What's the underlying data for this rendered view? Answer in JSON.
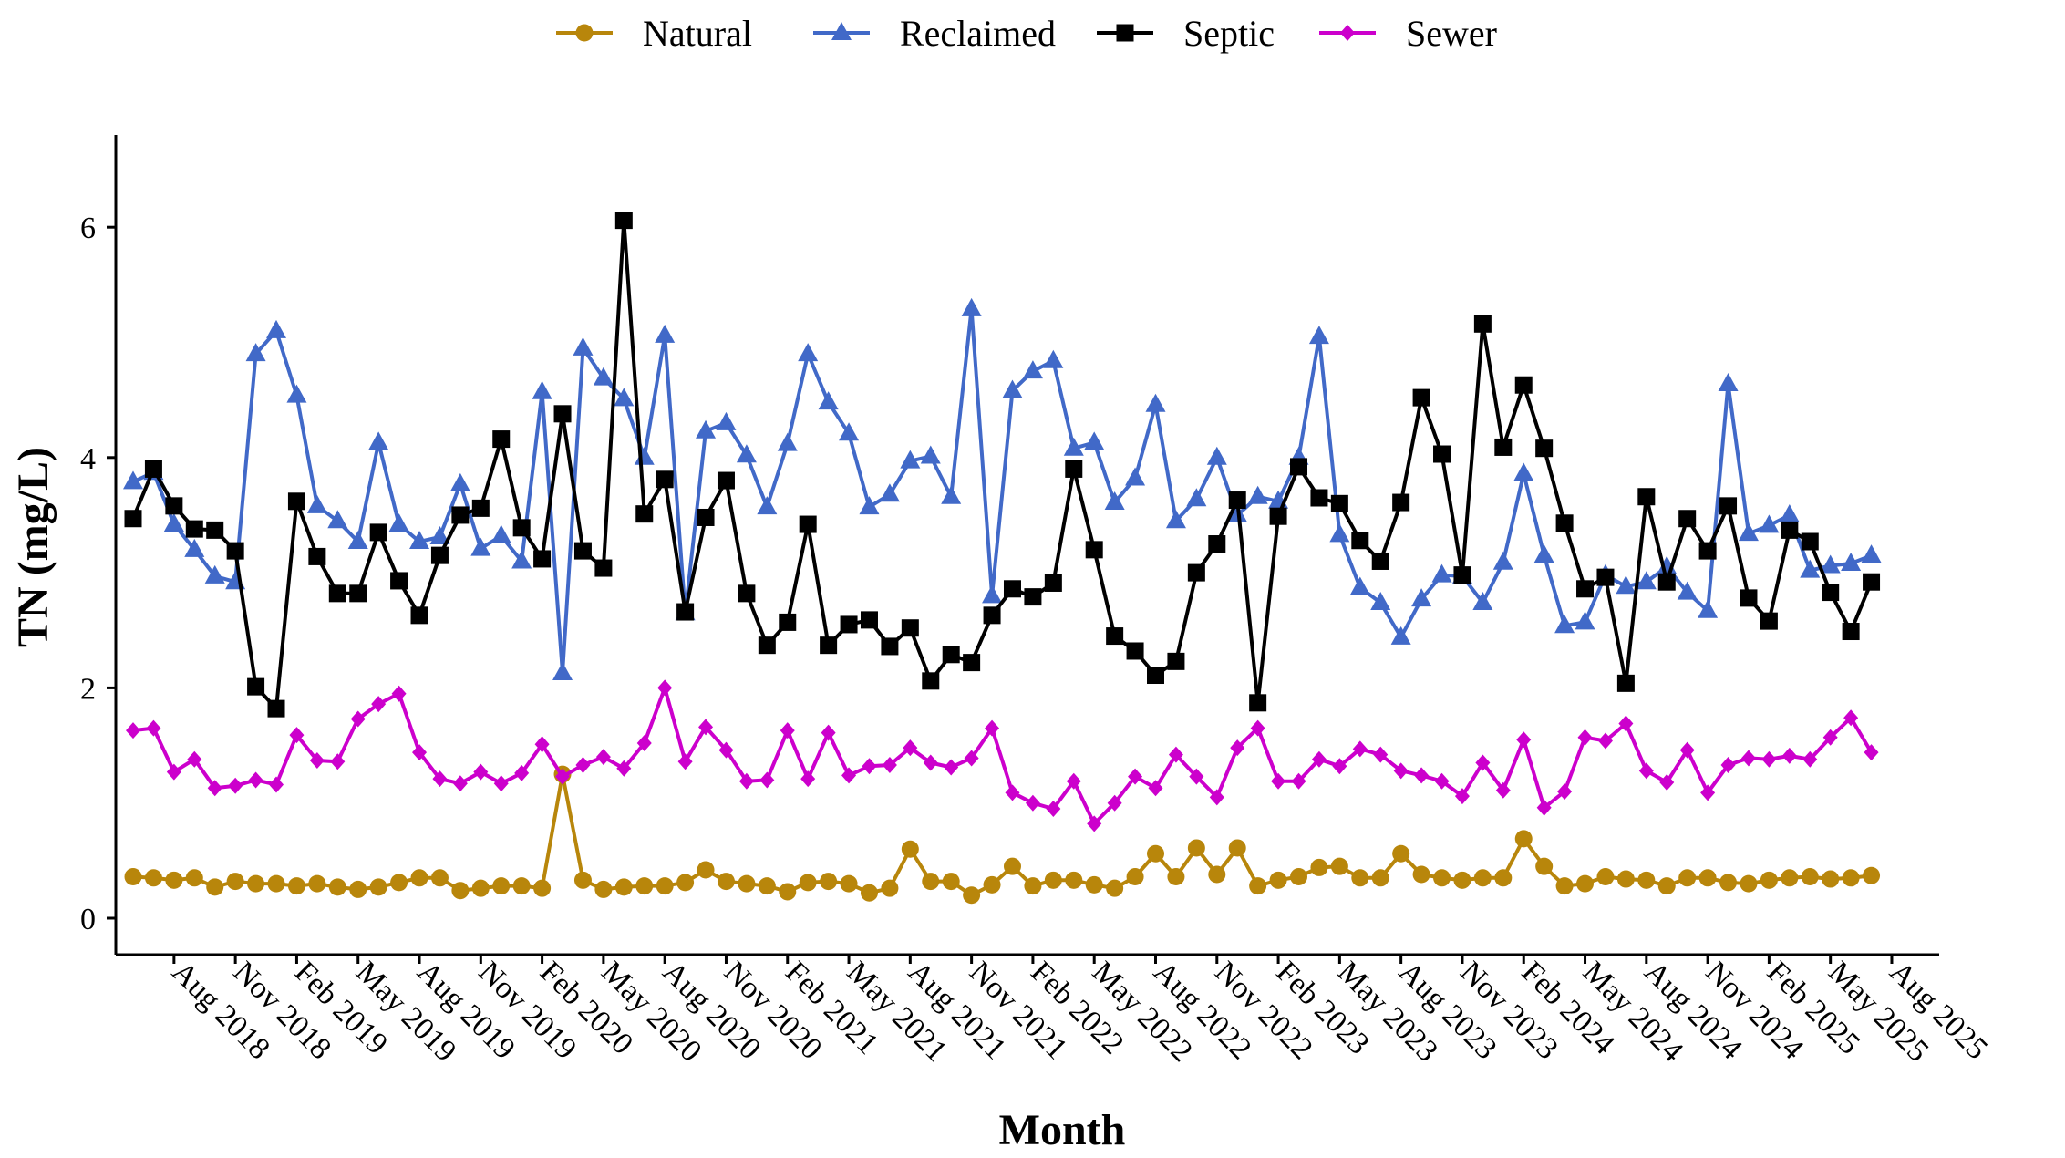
{
  "chart_data": {
    "type": "line",
    "xlabel": "Month",
    "ylabel": "TN (mg/L)",
    "ylim": [
      -0.3,
      6.8
    ],
    "yticks": [
      0,
      2,
      4,
      6
    ],
    "xticks": [
      "Aug 2018",
      "Nov 2018",
      "Feb 2019",
      "May 2019",
      "Aug 2019",
      "Nov 2019",
      "Feb 2020",
      "May 2020",
      "Aug 2020",
      "Nov 2020",
      "Feb 2021",
      "May 2021",
      "Aug 2021",
      "Nov 2021",
      "Feb 2022",
      "May 2022",
      "Aug 2022",
      "Nov 2022",
      "Feb 2023",
      "May 2023",
      "Aug 2023",
      "Nov 2023",
      "Feb 2024",
      "May 2024",
      "Aug 2024",
      "Nov 2024",
      "Feb 2025",
      "May 2025",
      "Aug 2025"
    ],
    "x": [
      "Jun 2018",
      "Jul 2018",
      "Aug 2018",
      "Sep 2018",
      "Oct 2018",
      "Nov 2018",
      "Dec 2018",
      "Jan 2019",
      "Feb 2019",
      "Mar 2019",
      "Apr 2019",
      "May 2019",
      "Jun 2019",
      "Jul 2019",
      "Aug 2019",
      "Sep 2019",
      "Oct 2019",
      "Nov 2019",
      "Dec 2019",
      "Jan 2020",
      "Feb 2020",
      "Mar 2020",
      "Apr 2020",
      "May 2020",
      "Jun 2020",
      "Jul 2020",
      "Aug 2020",
      "Sep 2020",
      "Oct 2020",
      "Nov 2020",
      "Dec 2020",
      "Jan 2021",
      "Feb 2021",
      "Mar 2021",
      "Apr 2021",
      "May 2021",
      "Jun 2021",
      "Jul 2021",
      "Aug 2021",
      "Sep 2021",
      "Oct 2021",
      "Nov 2021",
      "Dec 2021",
      "Jan 2022",
      "Feb 2022",
      "Mar 2022",
      "Apr 2022",
      "May 2022",
      "Jun 2022",
      "Jul 2022",
      "Aug 2022",
      "Sep 2022",
      "Oct 2022",
      "Nov 2022",
      "Dec 2022",
      "Jan 2023",
      "Feb 2023",
      "Mar 2023",
      "Apr 2023",
      "May 2023",
      "Jun 2023",
      "Jul 2023",
      "Aug 2023",
      "Sep 2023",
      "Oct 2023",
      "Nov 2023",
      "Dec 2023",
      "Jan 2024",
      "Feb 2024",
      "Mar 2024",
      "Apr 2024",
      "May 2024",
      "Jun 2024",
      "Jul 2024",
      "Aug 2024",
      "Sep 2024",
      "Oct 2024",
      "Nov 2024",
      "Dec 2024",
      "Jan 2025",
      "Feb 2025",
      "Mar 2025",
      "Apr 2025",
      "May 2025",
      "Jun 2025",
      "Jul 2025"
    ],
    "legend_position": "top",
    "grid": false,
    "series": [
      {
        "name": "Natural",
        "color": "#B8860B",
        "marker": "circle",
        "values": [
          0.36,
          0.35,
          0.33,
          0.35,
          0.27,
          0.32,
          0.3,
          0.3,
          0.28,
          0.3,
          0.27,
          0.25,
          0.27,
          0.31,
          0.35,
          0.35,
          0.24,
          0.26,
          0.28,
          0.28,
          0.26,
          1.25,
          0.33,
          0.25,
          0.27,
          0.28,
          0.28,
          0.31,
          0.42,
          0.32,
          0.3,
          0.28,
          0.23,
          0.31,
          0.32,
          0.3,
          0.22,
          0.26,
          0.6,
          0.32,
          0.32,
          0.2,
          0.29,
          0.45,
          0.28,
          0.33,
          0.33,
          0.29,
          0.26,
          0.36,
          0.56,
          0.36,
          0.61,
          0.38,
          0.61,
          0.28,
          0.33,
          0.36,
          0.44,
          0.45,
          0.35,
          0.35,
          0.56,
          0.38,
          0.35,
          0.33,
          0.35,
          0.35,
          0.69,
          0.45,
          0.28,
          0.3,
          0.36,
          0.34,
          0.33,
          0.28,
          0.35,
          0.35,
          0.31,
          0.3,
          0.33,
          0.35,
          0.36,
          0.34,
          0.35,
          0.37
        ]
      },
      {
        "name": "Reclaimed",
        "color": "#4169C8",
        "marker": "triangle",
        "values": [
          3.79,
          3.87,
          3.42,
          3.2,
          2.97,
          2.92,
          4.9,
          5.1,
          4.54,
          3.58,
          3.45,
          3.27,
          4.13,
          3.42,
          3.27,
          3.31,
          3.77,
          3.21,
          3.32,
          3.1,
          4.57,
          2.13,
          4.95,
          4.69,
          4.51,
          4.0,
          5.06,
          2.65,
          4.23,
          4.3,
          4.02,
          3.57,
          4.12,
          4.9,
          4.48,
          4.21,
          3.57,
          3.68,
          3.97,
          4.01,
          3.66,
          5.29,
          2.8,
          4.58,
          4.75,
          4.84,
          4.08,
          4.13,
          3.61,
          3.82,
          4.46,
          3.45,
          3.64,
          4.0,
          3.5,
          3.66,
          3.62,
          4.0,
          5.05,
          3.33,
          2.87,
          2.74,
          2.44,
          2.77,
          2.98,
          2.97,
          2.74,
          3.09,
          3.86,
          3.15,
          2.54,
          2.57,
          2.98,
          2.88,
          2.92,
          3.05,
          2.83,
          2.67,
          4.64,
          3.34,
          3.41,
          3.5,
          3.02,
          3.06,
          3.08,
          3.15
        ]
      },
      {
        "name": "Septic",
        "color": "#000000",
        "marker": "square",
        "values": [
          3.47,
          3.9,
          3.58,
          3.38,
          3.37,
          3.19,
          2.01,
          1.82,
          3.62,
          3.14,
          2.82,
          2.82,
          3.35,
          2.93,
          2.63,
          3.15,
          3.5,
          3.56,
          4.16,
          3.39,
          3.12,
          4.38,
          3.19,
          3.04,
          6.06,
          3.51,
          3.81,
          2.66,
          3.48,
          3.8,
          2.82,
          2.37,
          2.57,
          3.42,
          2.37,
          2.55,
          2.59,
          2.36,
          2.52,
          2.06,
          2.29,
          2.22,
          2.63,
          2.86,
          2.79,
          2.91,
          3.9,
          3.2,
          2.45,
          2.32,
          2.11,
          2.23,
          3.0,
          3.25,
          3.63,
          1.87,
          3.49,
          3.92,
          3.65,
          3.6,
          3.28,
          3.1,
          3.61,
          4.52,
          4.03,
          2.98,
          5.16,
          4.09,
          4.63,
          4.08,
          3.43,
          2.86,
          2.96,
          2.04,
          3.66,
          2.92,
          3.47,
          3.19,
          3.58,
          2.78,
          2.58,
          3.37,
          3.27,
          2.83,
          2.49,
          2.92
        ]
      },
      {
        "name": "Sewer",
        "color": "#CC00CC",
        "marker": "diamond",
        "values": [
          1.63,
          1.65,
          1.27,
          1.38,
          1.13,
          1.15,
          1.2,
          1.16,
          1.59,
          1.37,
          1.36,
          1.73,
          1.86,
          1.95,
          1.44,
          1.21,
          1.17,
          1.27,
          1.17,
          1.26,
          1.51,
          1.23,
          1.33,
          1.4,
          1.3,
          1.52,
          2.0,
          1.36,
          1.66,
          1.46,
          1.19,
          1.2,
          1.63,
          1.21,
          1.61,
          1.24,
          1.32,
          1.33,
          1.48,
          1.35,
          1.31,
          1.39,
          1.65,
          1.09,
          1.0,
          0.95,
          1.19,
          0.82,
          1.0,
          1.23,
          1.13,
          1.42,
          1.23,
          1.05,
          1.48,
          1.65,
          1.19,
          1.19,
          1.38,
          1.32,
          1.47,
          1.42,
          1.28,
          1.24,
          1.19,
          1.06,
          1.35,
          1.11,
          1.55,
          0.96,
          1.1,
          1.57,
          1.54,
          1.69,
          1.28,
          1.18,
          1.46,
          1.09,
          1.33,
          1.39,
          1.38,
          1.41,
          1.38,
          1.57,
          1.74,
          1.44
        ]
      }
    ]
  }
}
